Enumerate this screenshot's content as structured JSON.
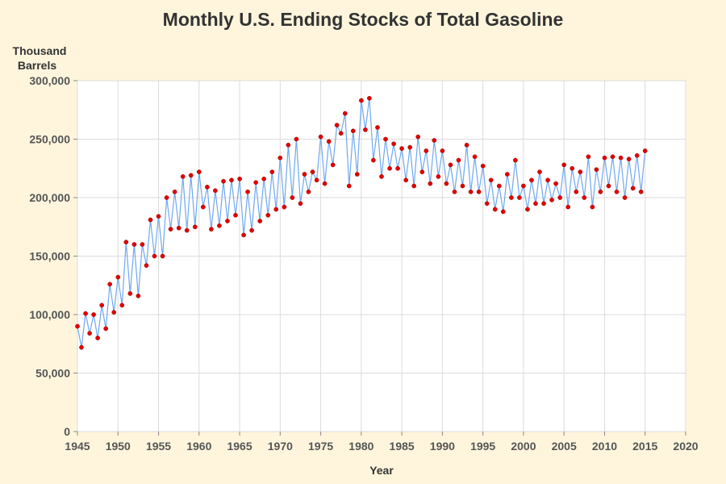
{
  "chart_data": {
    "type": "line",
    "title": "Monthly U.S. Ending Stocks of Total Gasoline",
    "ylabel_line1": "Thousand",
    "ylabel_line2": "Barrels",
    "xlabel": "Year",
    "xlim": [
      1945,
      2020
    ],
    "ylim": [
      0,
      300000
    ],
    "x_ticks": [
      1945,
      1950,
      1955,
      1960,
      1965,
      1970,
      1975,
      1980,
      1985,
      1990,
      1995,
      2000,
      2005,
      2010,
      2015,
      2020
    ],
    "x_tick_labels": [
      "1945",
      "1950",
      "1955",
      "1960",
      "1965",
      "1970",
      "1975",
      "1980",
      "1985",
      "1990",
      "1995",
      "2000",
      "2005",
      "2010",
      "2015",
      "2020"
    ],
    "y_ticks": [
      0,
      50000,
      100000,
      150000,
      200000,
      250000,
      300000
    ],
    "y_tick_labels": [
      "0",
      "50,000",
      "100,000",
      "150,000",
      "200,000",
      "250,000",
      "300,000"
    ],
    "grid": true,
    "line_color": "#6fa8f0",
    "marker_color": "#e00000",
    "series": [
      {
        "x": [
          1945,
          1945.5,
          1946,
          1946.5,
          1947,
          1947.5,
          1948,
          1948.5,
          1949,
          1949.5,
          1950,
          1950.5,
          1951,
          1951.5,
          1952,
          1952.5,
          1953,
          1953.5,
          1954,
          1954.5,
          1955,
          1955.5,
          1956,
          1956.5,
          1957,
          1957.5,
          1958,
          1958.5,
          1959,
          1959.5,
          1960,
          1960.5,
          1961,
          1961.5,
          1962,
          1962.5,
          1963,
          1963.5,
          1964,
          1964.5,
          1965,
          1965.5,
          1966,
          1966.5,
          1967,
          1967.5,
          1968,
          1968.5,
          1969,
          1969.5,
          1970,
          1970.5,
          1971,
          1971.5,
          1972,
          1972.5,
          1973,
          1973.5,
          1974,
          1974.5,
          1975,
          1975.5,
          1976,
          1976.5,
          1977,
          1977.5,
          1978,
          1978.5,
          1979,
          1979.5,
          1980,
          1980.5,
          1981,
          1981.5,
          1982,
          1982.5,
          1983,
          1983.5,
          1984,
          1984.5,
          1985,
          1985.5,
          1986,
          1986.5,
          1987,
          1987.5,
          1988,
          1988.5,
          1989,
          1989.5,
          1990,
          1990.5,
          1991,
          1991.5,
          1992,
          1992.5,
          1993,
          1993.5,
          1994,
          1994.5,
          1995,
          1995.5,
          1996,
          1996.5,
          1997,
          1997.5,
          1998,
          1998.5,
          1999,
          1999.5,
          2000,
          2000.5,
          2001,
          2001.5,
          2002,
          2002.5,
          2003,
          2003.5,
          2004,
          2004.5,
          2005,
          2005.5,
          2006,
          2006.5,
          2007,
          2007.5,
          2008,
          2008.5,
          2009,
          2009.5,
          2010,
          2010.5,
          2011,
          2011.5,
          2012,
          2012.5,
          2013,
          2013.5,
          2014,
          2014.5,
          2015
        ],
        "values": [
          90000,
          72000,
          101000,
          84000,
          100000,
          80000,
          108000,
          88000,
          126000,
          102000,
          132000,
          108000,
          162000,
          118000,
          160000,
          116000,
          160000,
          142000,
          181000,
          150000,
          184000,
          150000,
          200000,
          173000,
          205000,
          174000,
          218000,
          172000,
          219000,
          175000,
          222000,
          192000,
          209000,
          173000,
          206000,
          176000,
          214000,
          180000,
          215000,
          185000,
          216000,
          168000,
          205000,
          172000,
          213000,
          180000,
          216000,
          185000,
          222000,
          190000,
          234000,
          192000,
          245000,
          200000,
          250000,
          195000,
          220000,
          205000,
          222000,
          215000,
          252000,
          212000,
          248000,
          228000,
          262000,
          255000,
          272000,
          210000,
          257000,
          220000,
          283000,
          258000,
          285000,
          232000,
          260000,
          218000,
          250000,
          225000,
          246000,
          225000,
          242000,
          215000,
          243000,
          210000,
          252000,
          222000,
          240000,
          212000,
          249000,
          218000,
          240000,
          212000,
          228000,
          205000,
          232000,
          210000,
          245000,
          205000,
          235000,
          205000,
          227000,
          195000,
          215000,
          190000,
          210000,
          188000,
          220000,
          200000,
          232000,
          200000,
          210000,
          190000,
          215000,
          195000,
          222000,
          195000,
          215000,
          198000,
          212000,
          200000,
          228000,
          192000,
          225000,
          205000,
          222000,
          200000,
          235000,
          192000,
          224000,
          205000,
          234000,
          210000,
          235000,
          205000,
          234000,
          200000,
          233000,
          208000,
          236000,
          205000,
          240000
        ]
      }
    ]
  }
}
